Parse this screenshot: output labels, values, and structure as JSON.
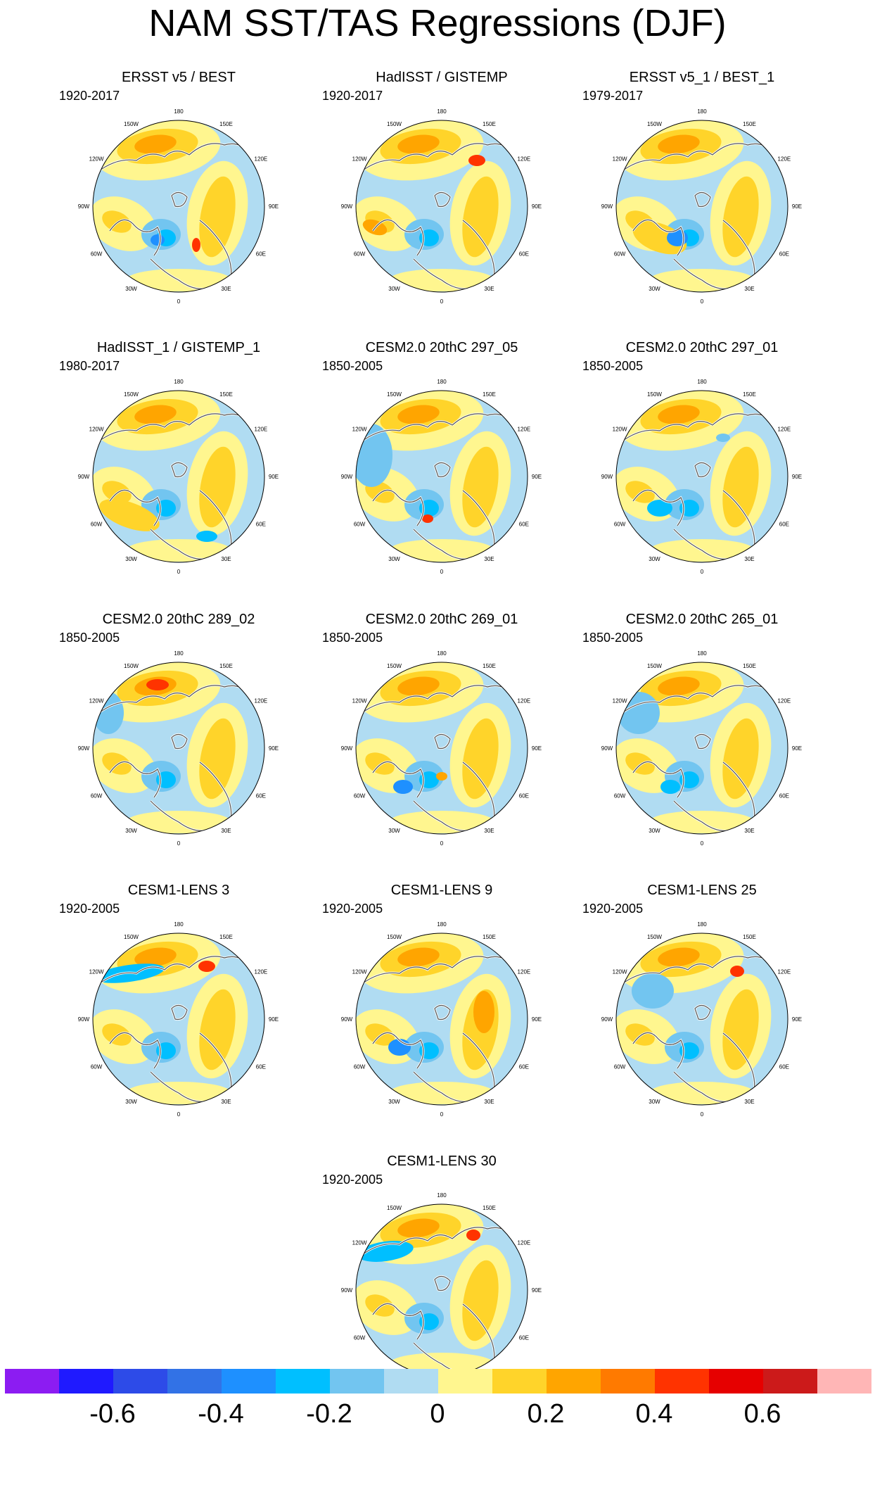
{
  "title": "NAM SST/TAS Regressions (DJF)",
  "lon_labels": [
    "180",
    "150E",
    "120E",
    "90E",
    "60E",
    "30E",
    "0",
    "30W",
    "60W",
    "90W",
    "120W",
    "150W"
  ],
  "colorbar": {
    "colors": [
      "#8c1cf2",
      "#1f1aff",
      "#2d4be8",
      "#3272e6",
      "#1e90ff",
      "#00bfff",
      "#72c5f0",
      "#b0dcf2",
      "#fff68f",
      "#ffd42a",
      "#ffa500",
      "#ff7a00",
      "#ff3300",
      "#e60000",
      "#cc1a1a",
      "#ffb6b6"
    ],
    "tick_values": [
      -0.6,
      -0.4,
      -0.2,
      0,
      0.2,
      0.4,
      0.6
    ],
    "tick_labels": [
      "-0.6",
      "-0.4",
      "-0.2",
      "0",
      "0.2",
      "0.4",
      "0.6"
    ]
  },
  "panels": [
    {
      "title": "ERSST v5 / BEST",
      "years": "1920-2017"
    },
    {
      "title": "HadISST / GISTEMP",
      "years": "1920-2017"
    },
    {
      "title": "ERSST v5_1 / BEST_1",
      "years": "1979-2017"
    },
    {
      "title": "HadISST_1 / GISTEMP_1",
      "years": "1980-2017"
    },
    {
      "title": "CESM2.0 20thC 297_05",
      "years": "1850-2005"
    },
    {
      "title": "CESM2.0 20thC 297_01",
      "years": "1850-2005"
    },
    {
      "title": "CESM2.0 20thC 289_02",
      "years": "1850-2005"
    },
    {
      "title": "CESM2.0 20thC 269_01",
      "years": "1850-2005"
    },
    {
      "title": "CESM2.0 20thC 265_01",
      "years": "1850-2005"
    },
    {
      "title": "CESM1-LENS 3",
      "years": "1920-2005"
    },
    {
      "title": "CESM1-LENS 9",
      "years": "1920-2005"
    },
    {
      "title": "CESM1-LENS 25",
      "years": "1920-2005"
    },
    {
      "title": "CESM1-LENS 30",
      "years": "1920-2005"
    }
  ]
}
